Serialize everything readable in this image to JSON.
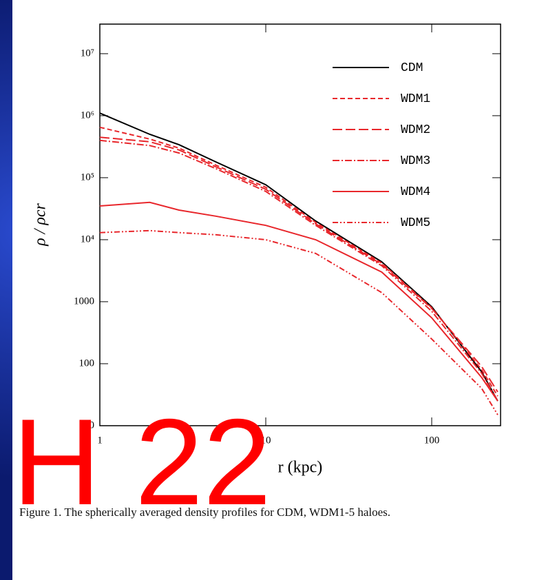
{
  "chart_data": {
    "type": "line",
    "xlabel": "r (kpc)",
    "ylabel": "ρ / ρcr",
    "xscale": "log",
    "yscale": "log",
    "xlim": [
      1,
      260
    ],
    "ylim": [
      10,
      30000000
    ],
    "xticks": [
      1,
      10,
      100
    ],
    "yticks": [
      10,
      100,
      1000,
      {
        "value": 10000,
        "label": "10⁴"
      },
      {
        "value": 100000,
        "label": "10⁵"
      },
      {
        "value": 1000000,
        "label": "10⁶"
      },
      {
        "value": 10000000,
        "label": "10⁷"
      }
    ],
    "legend": "upper right",
    "x": [
      1,
      2,
      3,
      5,
      10,
      20,
      50,
      100,
      200,
      250
    ],
    "series": [
      {
        "name": "CDM",
        "color": "#000000",
        "dash": "none",
        "values": [
          1100000,
          500000,
          340000,
          180000,
          77000,
          20000,
          4400,
          830,
          74,
          25
        ]
      },
      {
        "name": "WDM1",
        "color": "#e8262b",
        "dash": "7 4",
        "values": [
          650000,
          420000,
          300000,
          160000,
          70000,
          19000,
          4200,
          800,
          80,
          30
        ]
      },
      {
        "name": "WDM2",
        "color": "#e8262b",
        "dash": "14 5",
        "values": [
          450000,
          380000,
          280000,
          150000,
          65000,
          18000,
          4000,
          780,
          90,
          35
        ]
      },
      {
        "name": "WDM3",
        "color": "#e8262b",
        "dash": "10 3 2 3",
        "values": [
          400000,
          330000,
          250000,
          140000,
          60000,
          17000,
          3800,
          700,
          70,
          25
        ]
      },
      {
        "name": "WDM4",
        "color": "#e8262b",
        "dash": "none",
        "values": [
          35000,
          40000,
          30000,
          24000,
          17000,
          10000,
          3000,
          550,
          60,
          25
        ]
      },
      {
        "name": "WDM5",
        "color": "#e8262b",
        "dash": "8 3 2 3 2 3",
        "values": [
          13000,
          14000,
          13000,
          12000,
          10000,
          6000,
          1400,
          250,
          40,
          15
        ]
      }
    ]
  },
  "caption": "Figure 1. The spherically averaged density profiles for CDM, WDM1-5 haloes.",
  "overlay": "H 22"
}
